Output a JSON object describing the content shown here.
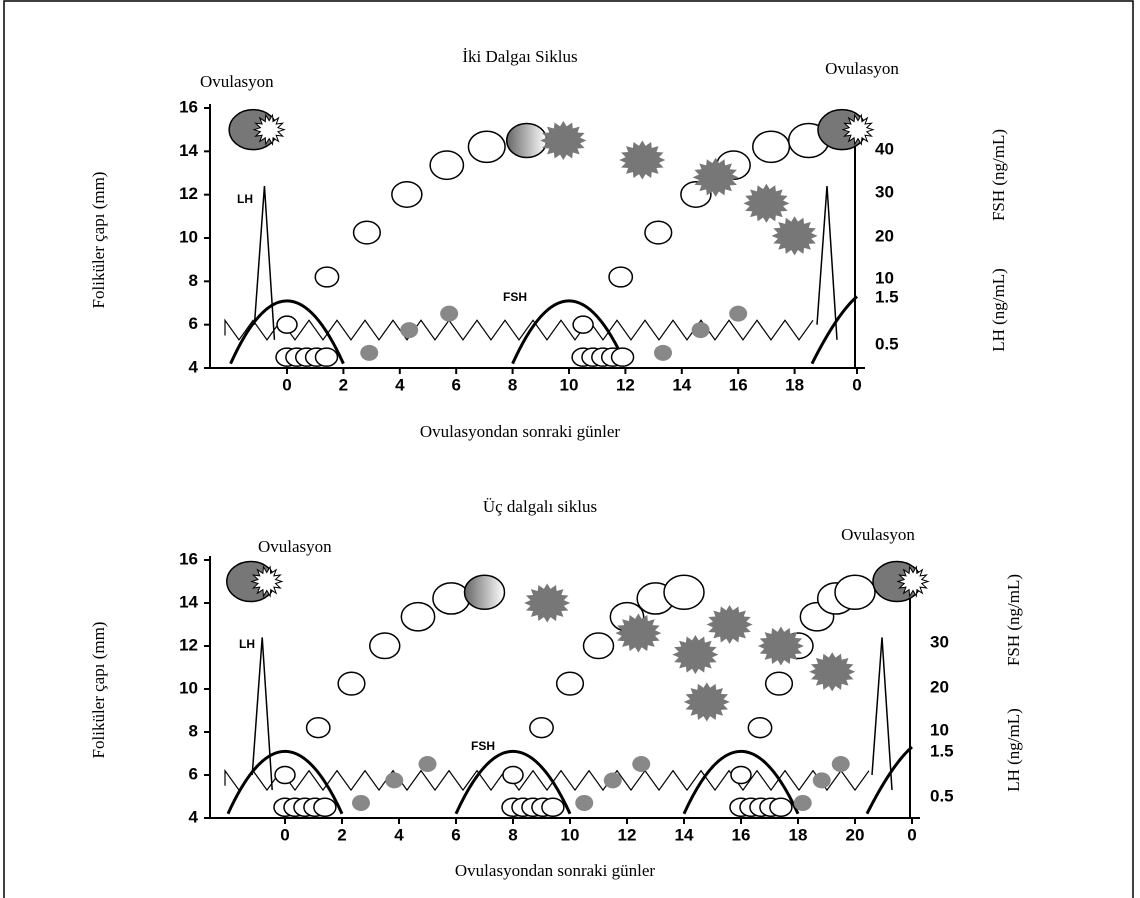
{
  "panels": [
    {
      "title": "İki Dalgaı Siklus",
      "ovulation_left": "Ovulasyon",
      "ovulation_right": "Ovulasyon",
      "y_label": "Foliküler çapı (mm)",
      "x_label": "Ovulasyondan sonraki günler",
      "y_ticks": [
        "16",
        "14",
        "12",
        "10",
        "8",
        "6",
        "4"
      ],
      "x_ticks": [
        "0",
        "2",
        "4",
        "6",
        "8",
        "10",
        "12",
        "14",
        "16",
        "18",
        "0"
      ],
      "fsh_label": "FSH (ng/mL)",
      "fsh_ticks": [
        "40",
        "30",
        "20",
        "10"
      ],
      "lh_label": "LH (ng/mL)",
      "lh_ticks": [
        "1.5",
        "0.5"
      ],
      "lh_marker": "LH",
      "fsh_marker": "FSH"
    },
    {
      "title": "Üç dalgalı siklus",
      "ovulation_left": "Ovulasyon",
      "ovulation_right": "Ovulasyon",
      "y_label": "Foliküler çapı (mm)",
      "x_label": "Ovulasyondan sonraki günler",
      "y_ticks": [
        "16",
        "14",
        "12",
        "10",
        "8",
        "6",
        "4"
      ],
      "x_ticks": [
        "0",
        "2",
        "4",
        "6",
        "8",
        "10",
        "12",
        "14",
        "16",
        "18",
        "20",
        "0"
      ],
      "fsh_label": "FSH (ng/mL)",
      "fsh_ticks": [
        "30",
        "20",
        "10"
      ],
      "lh_label": "LH (ng/mL)",
      "lh_ticks": [
        "1.5",
        "0.5"
      ],
      "lh_marker": "LH",
      "fsh_marker": "FSH"
    }
  ]
}
